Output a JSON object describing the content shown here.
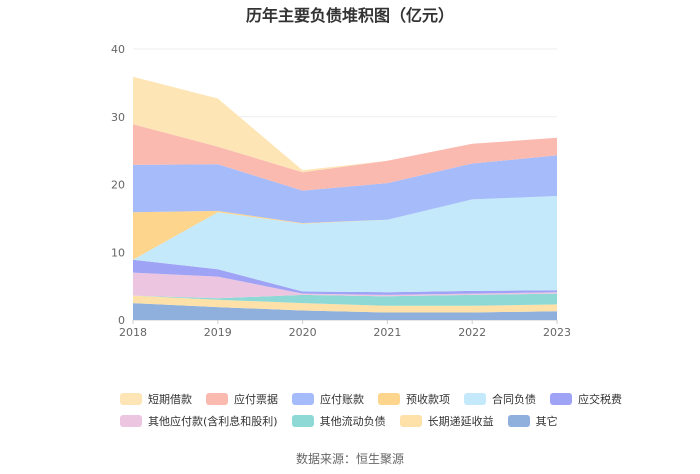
{
  "chart_data": {
    "type": "area",
    "title": "历年主要负债堆积图（亿元）",
    "x": [
      "2018",
      "2019",
      "2020",
      "2021",
      "2022",
      "2023"
    ],
    "y_ticks": [
      "0",
      "10",
      "20",
      "30",
      "40"
    ],
    "ylim": [
      0,
      40
    ],
    "stacked": true,
    "grid": true,
    "legend_position": "bottom",
    "series": [
      {
        "name": "其它",
        "color": "#8fb0dd",
        "values": [
          2.5,
          1.9,
          1.4,
          1.1,
          1.1,
          1.3
        ]
      },
      {
        "name": "长期递延收益",
        "color": "#fde1a8",
        "values": [
          1.1,
          1.1,
          1.1,
          1.0,
          1.0,
          1.0
        ]
      },
      {
        "name": "其他流动负债",
        "color": "#8ed9d6",
        "values": [
          0.0,
          0.2,
          1.2,
          1.4,
          1.6,
          1.6
        ]
      },
      {
        "name": "其他应付款(含利息和股利)",
        "color": "#ecc6e0",
        "values": [
          3.4,
          3.2,
          0.2,
          0.2,
          0.2,
          0.2
        ]
      },
      {
        "name": "应交税费",
        "color": "#9fa3f5",
        "values": [
          1.9,
          1.1,
          0.3,
          0.4,
          0.4,
          0.3
        ]
      },
      {
        "name": "合同负债",
        "color": "#c4e9fb",
        "values": [
          0.0,
          8.4,
          10.0,
          10.7,
          13.5,
          13.9
        ]
      },
      {
        "name": "预收款项",
        "color": "#fdd58c",
        "values": [
          7.0,
          0.2,
          0.1,
          0.0,
          0.0,
          0.0
        ]
      },
      {
        "name": "应付账款",
        "color": "#a6bbf9",
        "values": [
          7.0,
          6.9,
          4.8,
          5.4,
          5.3,
          6.0
        ]
      },
      {
        "name": "应付票据",
        "color": "#fbbab0",
        "values": [
          6.0,
          2.6,
          2.7,
          3.3,
          2.9,
          2.6
        ]
      },
      {
        "name": "短期借款",
        "color": "#fee5b5",
        "values": [
          7.0,
          7.1,
          0.3,
          0.0,
          0.0,
          0.0
        ]
      }
    ],
    "legend_order": [
      "短期借款",
      "应付票据",
      "应付账款",
      "预收款项",
      "合同负债",
      "应交税费",
      "其他应付款(含利息和股利)",
      "其他流动负债",
      "长期递延收益",
      "其它"
    ]
  },
  "source_text": "数据来源：恒生聚源"
}
